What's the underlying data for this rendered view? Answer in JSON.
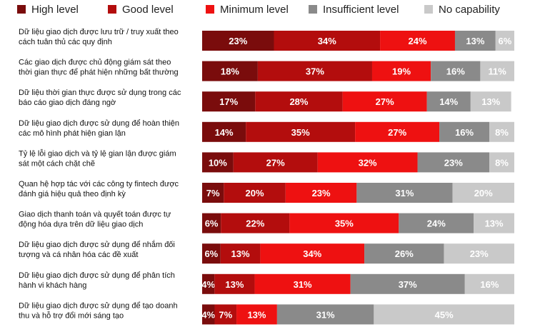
{
  "chart_data": {
    "type": "bar",
    "orientation": "horizontal",
    "stacked": true,
    "title": "",
    "xlabel": "",
    "ylabel": "",
    "xlim": [
      0,
      100
    ],
    "unit": "%",
    "grid": false,
    "legend_position": "top",
    "categories": [
      [
        "Dữ liệu giao dịch được lưu trữ / truy xuất theo",
        "cách tuân thủ các quy định"
      ],
      [
        "Các giao dịch được chủ động giám sát theo",
        "thời gian thực để phát hiện những bất thường"
      ],
      [
        "Dữ liệu thời gian thực được sử dụng trong các",
        "báo cáo giao dịch đáng ngờ"
      ],
      [
        "Dữ liệu giao dịch được sử dụng để hoàn thiện",
        "các mô hình phát hiện gian lận"
      ],
      [
        "Tỷ lệ lỗi giao dịch và tỷ lệ gian lận được giám",
        "sát một cách chặt chẽ"
      ],
      [
        "Quan hệ hợp tác với các công ty fintech được",
        "đánh giá hiệu quả theo định kỳ"
      ],
      [
        "Giao dịch thanh toán và quyết toán được tự",
        "động hóa dựa trên dữ liệu giao dịch"
      ],
      [
        "Dữ liệu giao dịch được sử dụng để nhắm đối",
        "tượng và cá nhân hóa các đề xuất"
      ],
      [
        "Dữ liệu giao dịch được sử dụng để phân tích",
        "hành vi khách hàng"
      ],
      [
        "Dữ liệu giao dịch được sử dụng để tạo doanh",
        "thu và hỗ trợ đổi mới sáng tạo"
      ]
    ],
    "series": [
      {
        "name": "High level",
        "color": "#7a0c0c",
        "text_color": "#ffffff",
        "values": [
          23,
          18,
          17,
          14,
          10,
          7,
          6,
          6,
          4,
          4
        ]
      },
      {
        "name": "Good level",
        "color": "#b30d0d",
        "text_color": "#ffffff",
        "values": [
          34,
          37,
          28,
          35,
          27,
          20,
          22,
          13,
          13,
          7
        ]
      },
      {
        "name": "Minimum level",
        "color": "#ee1111",
        "text_color": "#ffffff",
        "values": [
          24,
          19,
          27,
          27,
          32,
          23,
          35,
          34,
          31,
          13
        ]
      },
      {
        "name": "Insufficient level",
        "color": "#8a8a8a",
        "text_color": "#ffffff",
        "values": [
          13,
          16,
          14,
          16,
          23,
          31,
          24,
          26,
          37,
          31
        ]
      },
      {
        "name": "No capability",
        "color": "#c9c9c9",
        "text_color": "#ffffff",
        "values": [
          6,
          11,
          13,
          8,
          8,
          20,
          13,
          23,
          16,
          45
        ]
      }
    ]
  }
}
